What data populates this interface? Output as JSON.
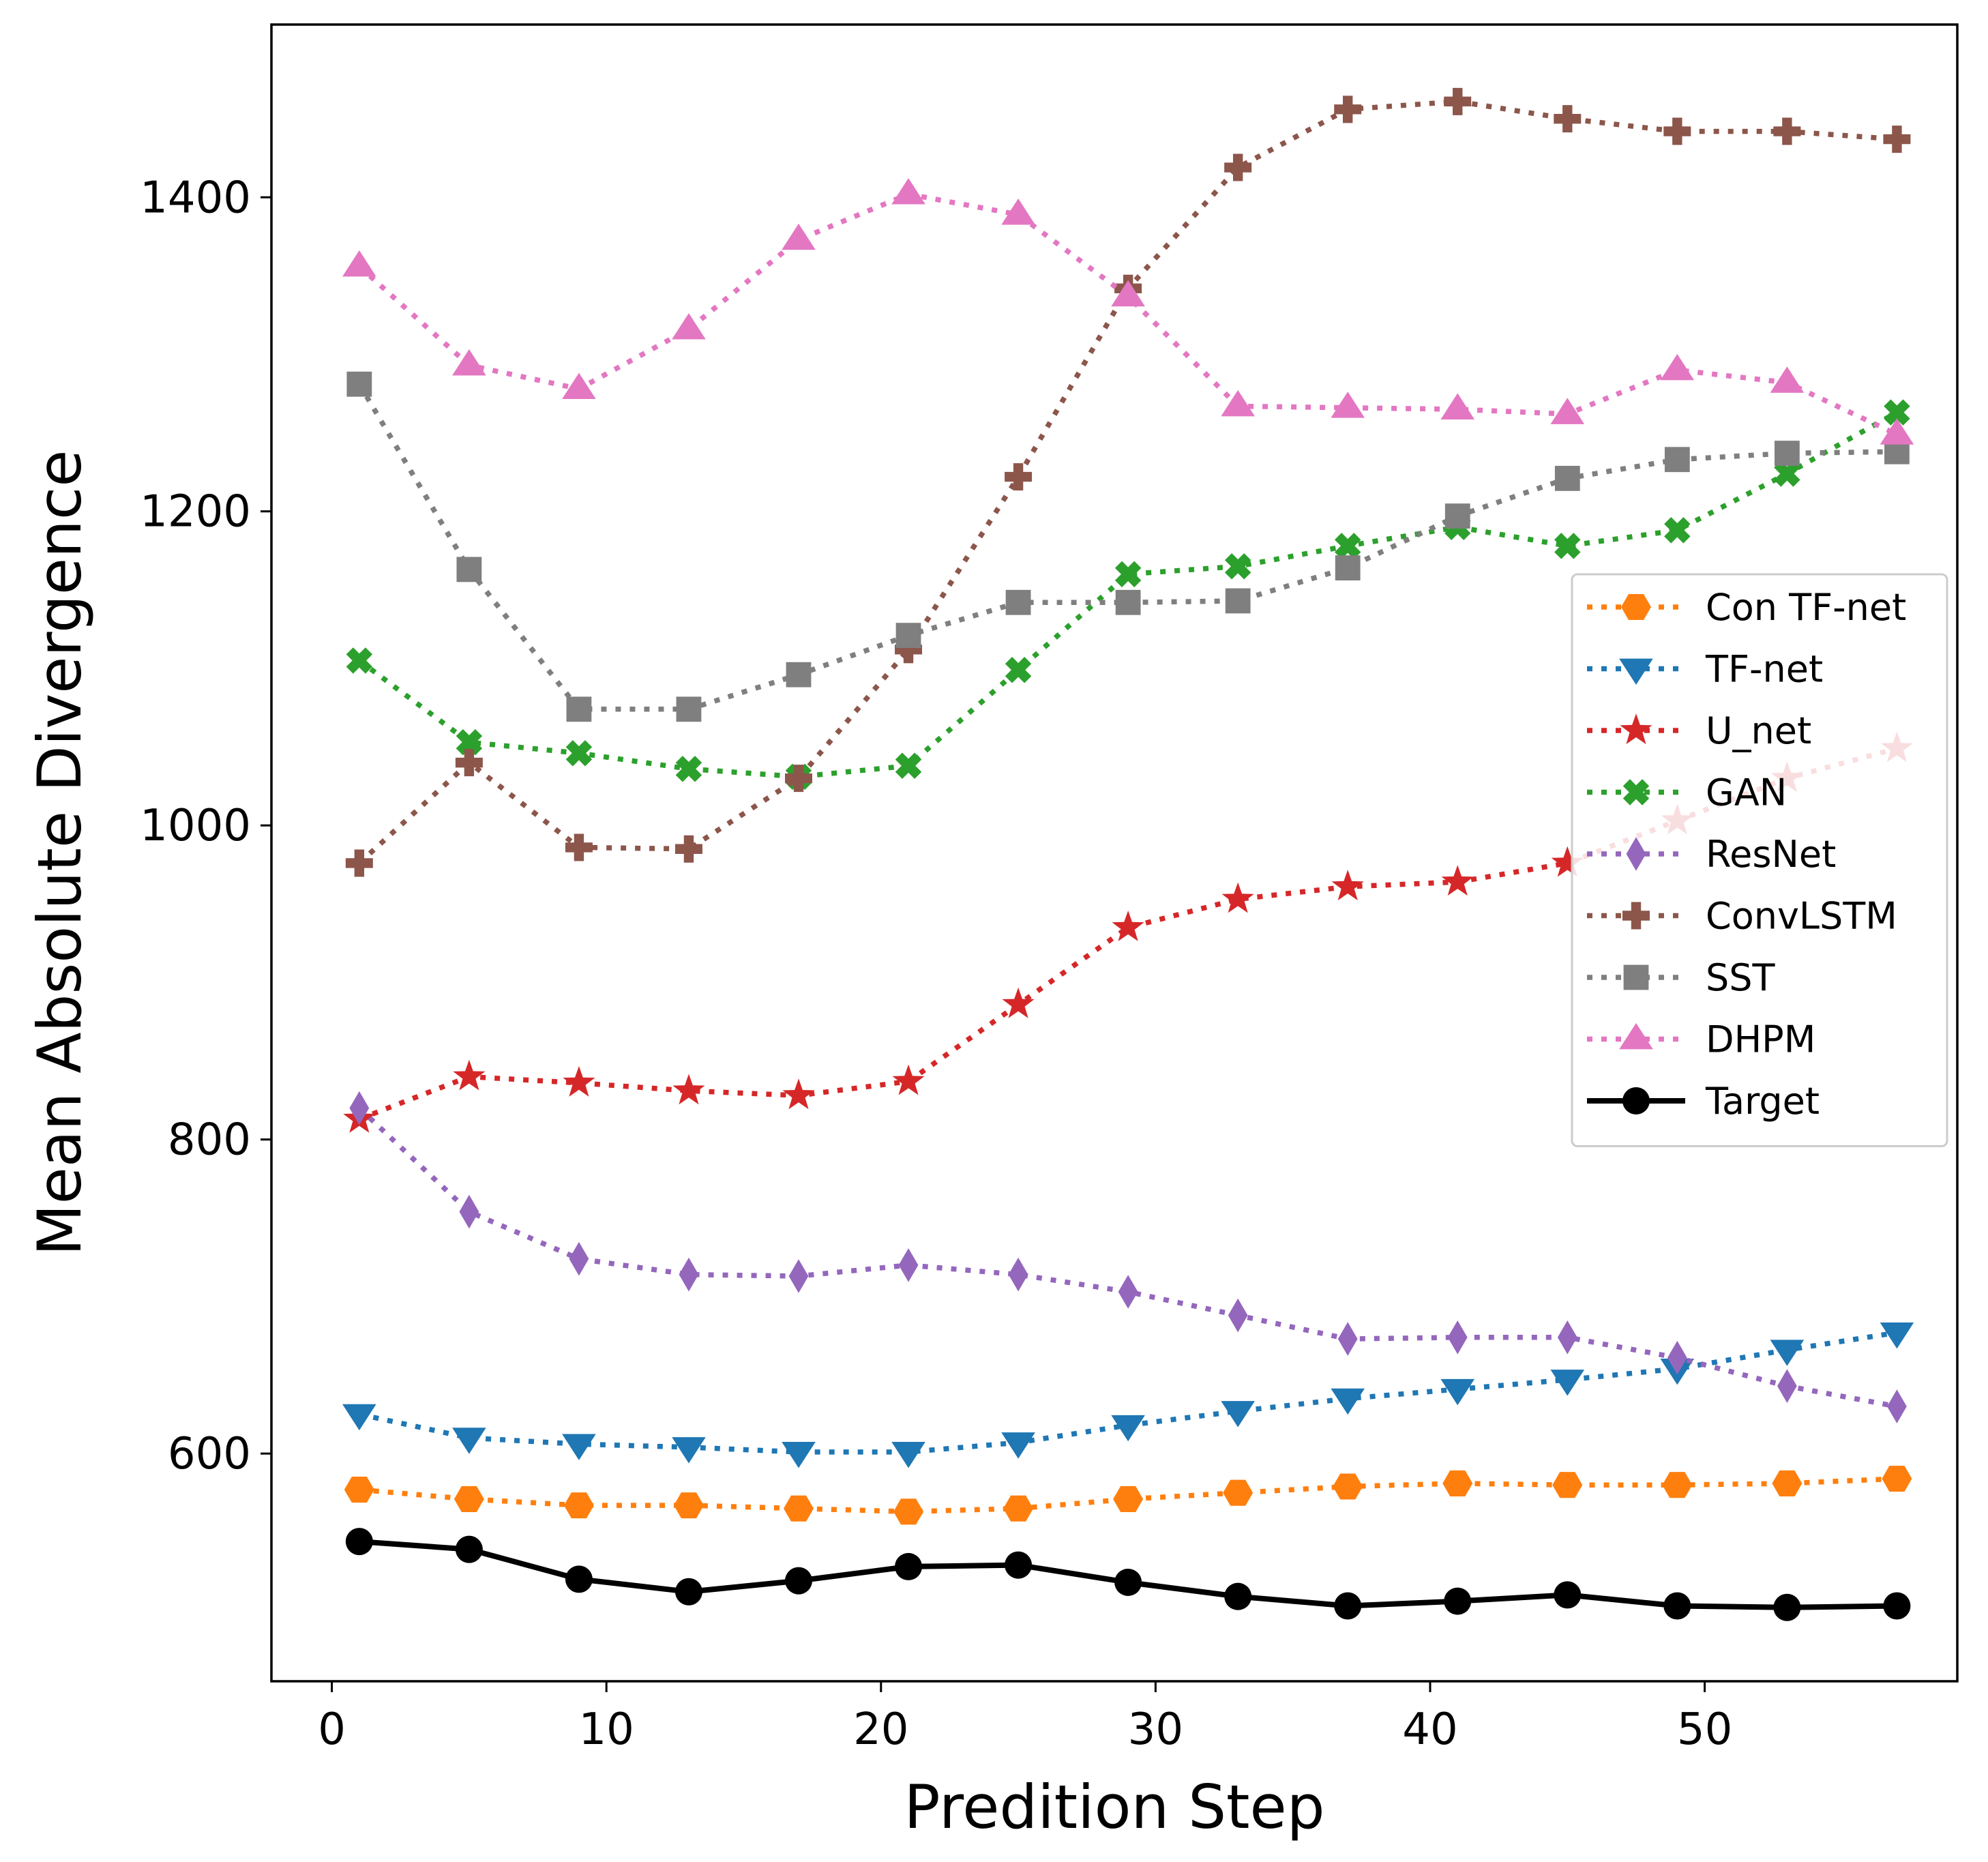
{
  "chart_data": {
    "type": "line",
    "xlabel": "Predition Step",
    "ylabel": "Mean Absolute Divergence",
    "xlim": [
      -2.2,
      59.2
    ],
    "ylim": [
      455,
      1510
    ],
    "xticks": [
      0,
      10,
      20,
      30,
      40,
      50
    ],
    "yticks": [
      600,
      800,
      1000,
      1200,
      1400
    ],
    "grid": false,
    "legend_position": "center-right",
    "x": [
      1,
      5,
      9,
      13,
      17,
      21,
      25,
      29,
      33,
      37,
      41,
      45,
      49,
      53,
      57
    ],
    "series": [
      {
        "name": "Con TF-net",
        "color": "#ff7f0e",
        "marker": "hexagon",
        "linestyle": "dotted",
        "values": [
          577,
          571,
          567,
          567,
          565,
          563,
          565,
          571,
          575,
          579,
          581,
          580,
          580,
          581,
          584
        ]
      },
      {
        "name": "TF-net",
        "color": "#1f77b4",
        "marker": "triangle-down",
        "linestyle": "dotted",
        "values": [
          625,
          610,
          606,
          604,
          601,
          601,
          607,
          618,
          627,
          635,
          641,
          647,
          654,
          666,
          677
        ]
      },
      {
        "name": "U_net",
        "color": "#d62728",
        "marker": "star",
        "linestyle": "dotted",
        "values": [
          813,
          840,
          836,
          831,
          828,
          837,
          886,
          935,
          953,
          961,
          964,
          976,
          1003,
          1030,
          1049
        ]
      },
      {
        "name": "GAN",
        "color": "#2ca02c",
        "marker": "x-filled",
        "linestyle": "dotted",
        "values": [
          1105,
          1053,
          1046,
          1036,
          1031,
          1038,
          1099,
          1160,
          1165,
          1178,
          1190,
          1178,
          1188,
          1224,
          1263
        ]
      },
      {
        "name": "ResNet",
        "color": "#9467bd",
        "marker": "thin-diamond",
        "linestyle": "dotted",
        "values": [
          820,
          754,
          724,
          714,
          713,
          720,
          714,
          703,
          688,
          673,
          674,
          674,
          661,
          643,
          630
        ]
      },
      {
        "name": "ConvLSTM",
        "color": "#8c564b",
        "marker": "plus-filled",
        "linestyle": "dotted",
        "values": [
          976,
          1040,
          986,
          985,
          1030,
          1112,
          1222,
          1342,
          1419,
          1456,
          1461,
          1450,
          1442,
          1442,
          1437
        ]
      },
      {
        "name": "SST",
        "color": "#7f7f7f",
        "marker": "square",
        "linestyle": "dotted",
        "values": [
          1281,
          1163,
          1074,
          1074,
          1096,
          1121,
          1142,
          1142,
          1143,
          1164,
          1197,
          1221,
          1233,
          1237,
          1238
        ]
      },
      {
        "name": "DHPM",
        "color": "#e377c2",
        "marker": "triangle-up",
        "linestyle": "dotted",
        "values": [
          1356,
          1293,
          1278,
          1316,
          1373,
          1402,
          1389,
          1337,
          1267,
          1266,
          1265,
          1262,
          1290,
          1282,
          1249
        ]
      },
      {
        "name": "Target",
        "color": "#000000",
        "marker": "circle",
        "linestyle": "solid",
        "values": [
          544,
          539,
          520,
          512,
          519,
          528,
          529,
          518,
          509,
          503,
          506,
          510,
          503,
          502,
          503
        ]
      }
    ]
  }
}
